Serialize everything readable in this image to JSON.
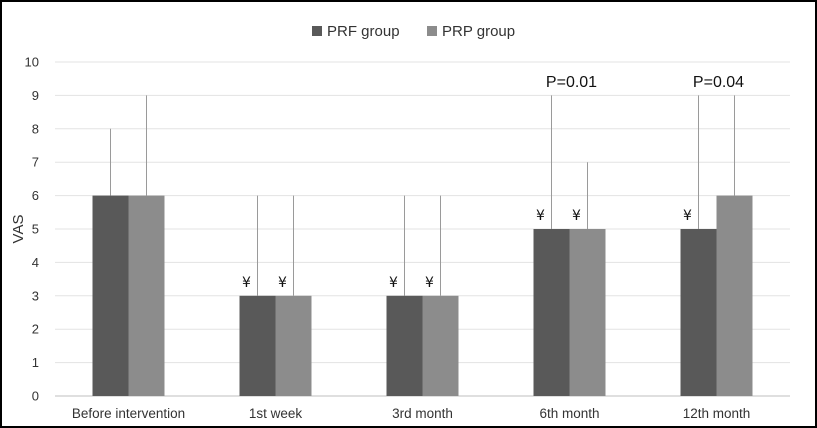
{
  "chart_data": {
    "type": "bar",
    "title": "",
    "xlabel": "",
    "ylabel": "VAS",
    "ylim": [
      0,
      10
    ],
    "yticks": [
      0,
      1,
      2,
      3,
      4,
      5,
      6,
      7,
      8,
      9,
      10
    ],
    "grid": true,
    "legend_position": "top-center",
    "categories": [
      "Before intervention",
      "1st week",
      "3rd month",
      "6th month",
      "12th month"
    ],
    "series": [
      {
        "name": "PRF group",
        "color": "#595959",
        "values": [
          6,
          3,
          3,
          5,
          5
        ],
        "error_upper": [
          8,
          6,
          6,
          9,
          9
        ],
        "markers": [
          "",
          "¥",
          "¥",
          "¥",
          "¥"
        ]
      },
      {
        "name": "PRP group",
        "color": "#8c8c8c",
        "values": [
          6,
          3,
          3,
          5,
          6
        ],
        "error_upper": [
          9,
          6,
          6,
          7,
          9
        ],
        "markers": [
          "",
          "¥",
          "¥",
          "¥",
          ""
        ]
      }
    ],
    "annotations": [
      {
        "category": "6th month",
        "text": "P=0.01",
        "y": 9.4
      },
      {
        "category": "12th month",
        "text": "P=0.04",
        "y": 9.4
      }
    ]
  }
}
